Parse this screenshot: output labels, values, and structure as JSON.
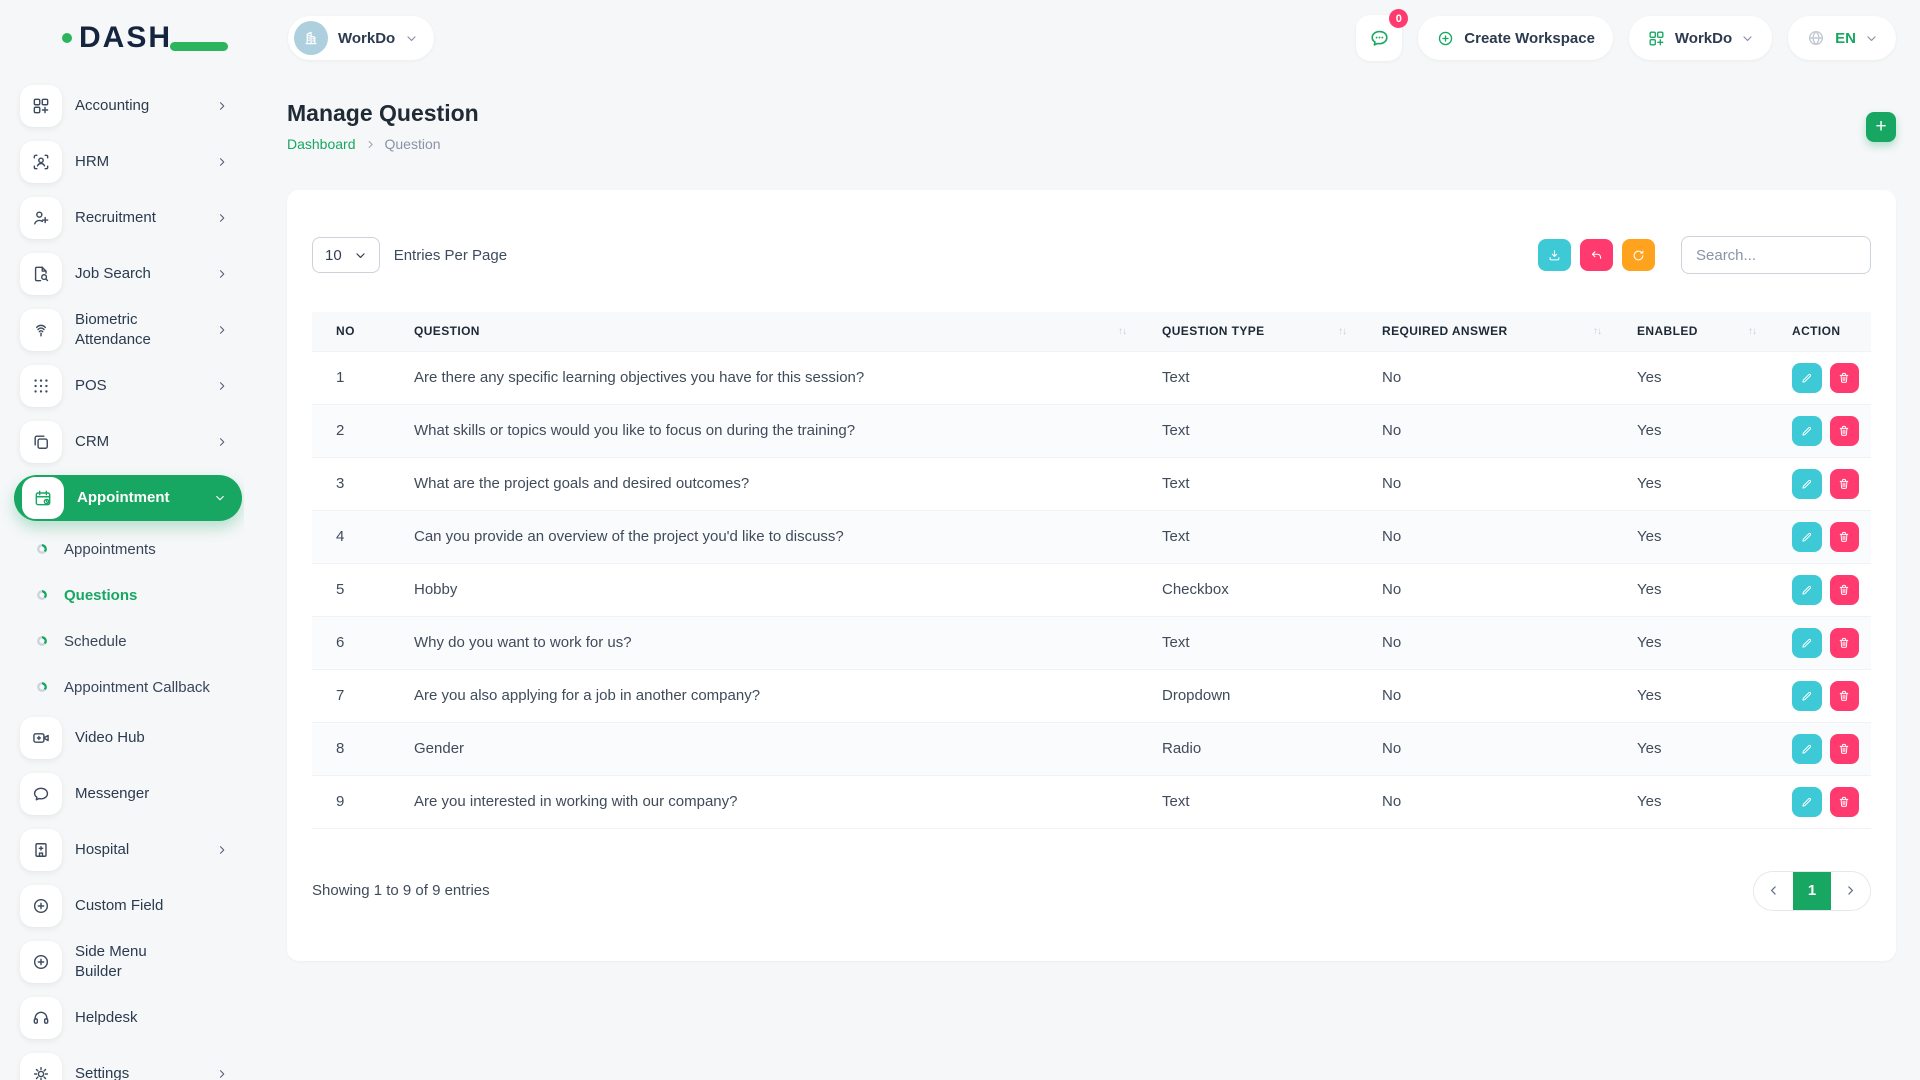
{
  "colors": {
    "accent": "#18a762",
    "logo_green": "#2cb55c",
    "info": "#3ec9d6",
    "danger": "#ff3a6e",
    "warning": "#ffa21d",
    "dark": "#212b36",
    "text": "#404b5a",
    "muted": "#8a94a6",
    "page_bg": "#f5f7f8"
  },
  "header": {
    "logo_text": "DASH",
    "workspace_selector": {
      "label": "WorkDo",
      "icon": "building-icon"
    },
    "chat_badge": "0",
    "create_workspace_label": "Create Workspace",
    "workspace_menu_label": "WorkDo",
    "language_code": "EN"
  },
  "sidebar": {
    "items": [
      {
        "label": "Accounting",
        "icon": "grid-plus",
        "chevron": true
      },
      {
        "label": "HRM",
        "icon": "user-scan",
        "chevron": true
      },
      {
        "label": "Recruitment",
        "icon": "user-plus",
        "chevron": true
      },
      {
        "label": "Job Search",
        "icon": "doc-search",
        "chevron": true
      },
      {
        "label": "Biometric Attendance",
        "icon": "fingerprint",
        "chevron": true
      },
      {
        "label": "POS",
        "icon": "dots-grid",
        "chevron": true
      },
      {
        "label": "CRM",
        "icon": "squares",
        "chevron": true
      },
      {
        "label": "Appointment",
        "icon": "calendar",
        "chevron": true,
        "active": true,
        "expanded": true
      },
      {
        "label": "Appointments",
        "sub": true
      },
      {
        "label": "Questions",
        "sub": true,
        "active": true
      },
      {
        "label": "Schedule",
        "sub": true
      },
      {
        "label": "Appointment Callback",
        "sub": true
      },
      {
        "label": "Video Hub",
        "icon": "video"
      },
      {
        "label": "Messenger",
        "icon": "chat"
      },
      {
        "label": "Hospital",
        "icon": "hospital",
        "chevron": true
      },
      {
        "label": "Custom Field",
        "icon": "plus-circle"
      },
      {
        "label": "Side Menu Builder",
        "icon": "plus-circle"
      },
      {
        "label": "Helpdesk",
        "icon": "headset"
      },
      {
        "label": "Settings",
        "icon": "gear",
        "chevron": true
      }
    ]
  },
  "page": {
    "title": "Manage Question",
    "breadcrumb": {
      "home": "Dashboard",
      "current": "Question"
    }
  },
  "toolbar": {
    "entries_select_value": "10",
    "entries_label": "Entries Per Page",
    "search_placeholder": "Search...",
    "actions": [
      {
        "name": "export",
        "icon": "download",
        "color": "info"
      },
      {
        "name": "reset",
        "icon": "undo",
        "color": "danger"
      },
      {
        "name": "refresh",
        "icon": "refresh",
        "color": "warning"
      }
    ]
  },
  "table": {
    "columns": [
      {
        "label": "NO",
        "key": "no",
        "sortable": false
      },
      {
        "label": "QUESTION",
        "key": "question",
        "sortable": true
      },
      {
        "label": "QUESTION TYPE",
        "key": "question_type",
        "sortable": true
      },
      {
        "label": "REQUIRED ANSWER",
        "key": "required_answer",
        "sortable": true
      },
      {
        "label": "ENABLED",
        "key": "enabled",
        "sortable": true
      },
      {
        "label": "ACTION",
        "key": "action",
        "sortable": false
      }
    ],
    "rows": [
      {
        "no": "1",
        "question": "Are there any specific learning objectives you have for this session?",
        "question_type": "Text",
        "required_answer": "No",
        "enabled": "Yes"
      },
      {
        "no": "2",
        "question": "What skills or topics would you like to focus on during the training?",
        "question_type": "Text",
        "required_answer": "No",
        "enabled": "Yes"
      },
      {
        "no": "3",
        "question": "What are the project goals and desired outcomes?",
        "question_type": "Text",
        "required_answer": "No",
        "enabled": "Yes"
      },
      {
        "no": "4",
        "question": "Can you provide an overview of the project you'd like to discuss?",
        "question_type": "Text",
        "required_answer": "No",
        "enabled": "Yes"
      },
      {
        "no": "5",
        "question": "Hobby",
        "question_type": "Checkbox",
        "required_answer": "No",
        "enabled": "Yes"
      },
      {
        "no": "6",
        "question": "Why do you want to work for us?",
        "question_type": "Text",
        "required_answer": "No",
        "enabled": "Yes"
      },
      {
        "no": "7",
        "question": "Are you also applying for a job in another company?",
        "question_type": "Dropdown",
        "required_answer": "No",
        "enabled": "Yes"
      },
      {
        "no": "8",
        "question": "Gender",
        "question_type": "Radio",
        "required_answer": "No",
        "enabled": "Yes"
      },
      {
        "no": "9",
        "question": "Are you interested in working with our company?",
        "question_type": "Text",
        "required_answer": "No",
        "enabled": "Yes"
      }
    ],
    "row_actions": [
      {
        "name": "edit",
        "icon": "pencil",
        "color": "info"
      },
      {
        "name": "delete",
        "icon": "trash",
        "color": "danger"
      }
    ]
  },
  "footer": {
    "showing_text": "Showing 1 to 9 of 9 entries",
    "pagination": {
      "current": "1"
    }
  }
}
